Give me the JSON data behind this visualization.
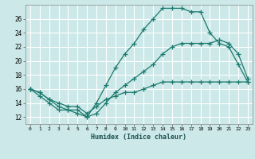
{
  "xlabel": "Humidex (Indice chaleur)",
  "bg_color": "#cce8e8",
  "grid_color": "#ffffff",
  "line_color": "#1a7a6e",
  "xlim": [
    -0.5,
    23.5
  ],
  "ylim": [
    11.0,
    28.0
  ],
  "xticks": [
    0,
    1,
    2,
    3,
    4,
    5,
    6,
    7,
    8,
    9,
    10,
    11,
    12,
    13,
    14,
    15,
    16,
    17,
    18,
    19,
    20,
    21,
    22,
    23
  ],
  "yticks": [
    12,
    14,
    16,
    18,
    20,
    22,
    24,
    26
  ],
  "line1_y": [
    16.0,
    15.0,
    14.0,
    13.0,
    13.0,
    12.5,
    12.0,
    14.0,
    16.5,
    19.0,
    21.0,
    22.5,
    24.5,
    26.0,
    27.5,
    27.5,
    27.5,
    27.0,
    27.0,
    24.0,
    22.5,
    22.0,
    19.5,
    17.0
  ],
  "line2_y": [
    16.0,
    15.5,
    14.5,
    13.5,
    13.0,
    13.0,
    12.0,
    12.5,
    14.0,
    15.5,
    16.5,
    17.5,
    18.5,
    19.5,
    21.0,
    22.0,
    22.5,
    22.5,
    22.5,
    22.5,
    23.0,
    22.5,
    21.0,
    17.5
  ],
  "line3_y": [
    16.0,
    15.5,
    14.5,
    14.0,
    13.5,
    13.5,
    12.5,
    13.5,
    14.5,
    15.0,
    15.5,
    15.5,
    16.0,
    16.5,
    17.0,
    17.0,
    17.0,
    17.0,
    17.0,
    17.0,
    17.0,
    17.0,
    17.0,
    17.0
  ]
}
